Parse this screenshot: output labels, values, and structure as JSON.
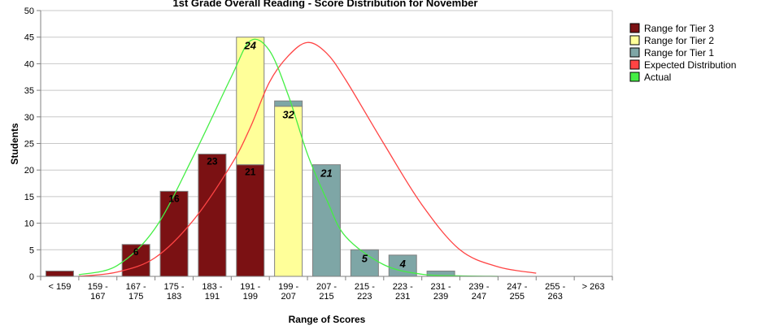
{
  "chart_data": {
    "type": "bar",
    "title": "1st Grade Overall Reading - Score Distribution for November",
    "xlabel": "Range of Scores",
    "ylabel": "Students",
    "ylim": [
      0,
      50
    ],
    "yticks": [
      0,
      5,
      10,
      15,
      20,
      25,
      30,
      35,
      40,
      45,
      50
    ],
    "grid": true,
    "legend_position": "right",
    "categories": [
      [
        "< 159"
      ],
      [
        "159 -",
        "167"
      ],
      [
        "167 -",
        "175"
      ],
      [
        "175 -",
        "183"
      ],
      [
        "183 -",
        "191"
      ],
      [
        "191 -",
        "199"
      ],
      [
        "199 -",
        "207"
      ],
      [
        "207 -",
        "215"
      ],
      [
        "215 -",
        "223"
      ],
      [
        "223 -",
        "231"
      ],
      [
        "231 -",
        "239"
      ],
      [
        "239 -",
        "247"
      ],
      [
        "247 -",
        "255"
      ],
      [
        "255 -",
        "263"
      ],
      [
        "> 263"
      ]
    ],
    "series": [
      {
        "name": "Range for Tier 3",
        "color": "#7b1113",
        "values": [
          1,
          0,
          6,
          16,
          23,
          21,
          0,
          0,
          0,
          0,
          0,
          0,
          0,
          0,
          0
        ],
        "labels": [
          "",
          "",
          "6",
          "16",
          "23",
          "21",
          "",
          "",
          "",
          "",
          "",
          "",
          "",
          "",
          ""
        ]
      },
      {
        "name": "Range for Tier 2",
        "color": "#ffff99",
        "values": [
          0,
          0,
          0,
          0,
          0,
          24,
          32,
          0,
          0,
          0,
          0,
          0,
          0,
          0,
          0
        ],
        "labels": [
          "",
          "",
          "",
          "",
          "",
          "24",
          "32",
          "",
          "",
          "",
          "",
          "",
          "",
          "",
          ""
        ]
      },
      {
        "name": "Range for Tier 1",
        "color": "#7ea6a6",
        "values": [
          0,
          0,
          0,
          0,
          0,
          0,
          1,
          21,
          5,
          4,
          1,
          0,
          0,
          0,
          0
        ],
        "labels": [
          "",
          "",
          "",
          "",
          "",
          "",
          "",
          "21",
          "5",
          "4",
          "",
          "",
          "",
          "",
          ""
        ]
      }
    ],
    "lines": [
      {
        "name": "Expected Distribution",
        "color": "#ff4444",
        "x": [
          1,
          2,
          3,
          4,
          5,
          5.5,
          6,
          6.5,
          7,
          7.5,
          8,
          9,
          10,
          11,
          12,
          13
        ],
        "y": [
          0,
          0.8,
          3.5,
          10.5,
          21,
          28,
          36.5,
          41.5,
          44,
          42,
          37,
          25,
          13.5,
          5,
          1.8,
          0.6
        ]
      },
      {
        "name": "Actual",
        "color": "#44ee44",
        "x": [
          1,
          2,
          3,
          4,
          5,
          5.5,
          6,
          6.5,
          7,
          7.5,
          8,
          9,
          10,
          11,
          12
        ],
        "y": [
          0.3,
          2,
          9,
          22.5,
          37.5,
          44.3,
          42.5,
          34,
          23,
          14.5,
          7.5,
          2.2,
          0.4,
          0.1,
          0
        ]
      }
    ]
  }
}
